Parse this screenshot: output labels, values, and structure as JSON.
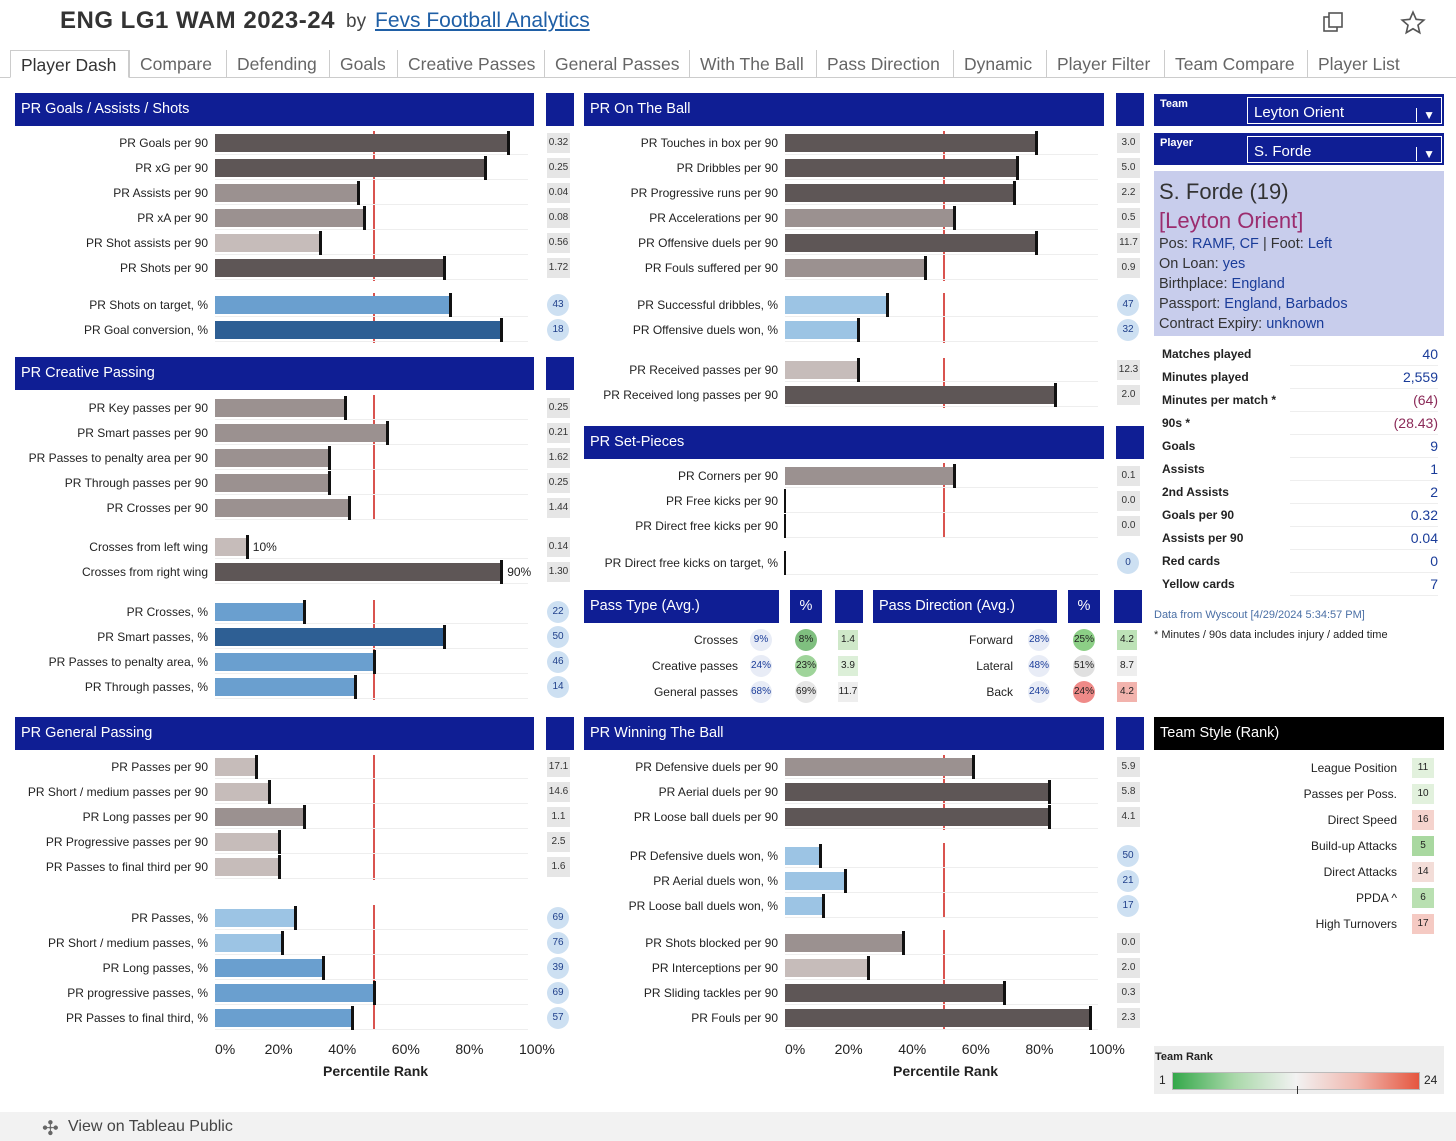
{
  "header": {
    "title": "ENG LG1 WAM 2023-24",
    "by": "by",
    "author": "Fevs Football Analytics",
    "share_icon": "share-icon",
    "favorite_icon": "star-icon"
  },
  "tabs": [
    {
      "label": "Player Dash",
      "active": true
    },
    {
      "label": "Compare"
    },
    {
      "label": "Defending"
    },
    {
      "label": "Goals"
    },
    {
      "label": "Creative Passes"
    },
    {
      "label": "General Passes"
    },
    {
      "label": "With The Ball"
    },
    {
      "label": "Pass Direction"
    },
    {
      "label": "Dynamic"
    },
    {
      "label": "Player Filter"
    },
    {
      "label": "Team Compare"
    },
    {
      "label": "Player List"
    }
  ],
  "colors": {
    "header_blue": "#0f1e94",
    "reference_line": "#d9534f",
    "bar_blue_dark": "#2e5f94",
    "bar_blue_mid": "#6a9fcf",
    "bar_blue_light": "#9cc4e4",
    "bar_grey_dark": "#5e5656",
    "bar_grey_mid": "#9b9190",
    "bar_grey_light": "#c6bcba"
  },
  "chart_data": [
    {
      "type": "bar",
      "title": "PR Goals / Assists / Shots",
      "xlim": [
        0,
        100
      ],
      "reference_line": 50,
      "categories": [
        "PR Goals per 90",
        "PR xG per 90",
        "PR Assists per 90",
        "PR xA per 90",
        "PR Shot assists per 90",
        "PR Shots per 90",
        "PR Shots on target, %",
        "PR Goal conversion, %"
      ],
      "values": [
        92,
        85,
        45,
        47,
        33,
        72,
        74,
        90
      ],
      "raw_values": [
        "0.32",
        "0.25",
        "0.04",
        "0.08",
        "0.56",
        "1.72",
        "43",
        "18"
      ]
    },
    {
      "type": "bar",
      "title": "PR Creative Passing",
      "xlim": [
        0,
        100
      ],
      "reference_line": 50,
      "categories": [
        "PR Key passes per 90",
        "PR Smart passes per 90",
        "PR Passes to penalty area per 90",
        "PR Through passes per 90",
        "PR Crosses per 90",
        "Crosses from left wing",
        "Crosses from right wing",
        "PR Crosses, %",
        "PR Smart passes, %",
        "PR Passes to penalty area, %",
        "PR Through passes, %"
      ],
      "values": [
        41,
        54,
        36,
        36,
        42,
        10,
        90,
        28,
        72,
        50,
        44
      ],
      "value_labels": [
        "",
        "",
        "",
        "",
        "",
        "10%",
        "90%",
        "",
        "",
        "",
        ""
      ],
      "raw_values": [
        "0.25",
        "0.21",
        "1.62",
        "0.25",
        "1.44",
        "0.14",
        "1.30",
        "22",
        "50",
        "46",
        "14"
      ]
    },
    {
      "type": "bar",
      "title": "PR General Passing",
      "xlim": [
        0,
        100
      ],
      "reference_line": 50,
      "xlabel": "Percentile Rank",
      "xticks": [
        "0%",
        "20%",
        "40%",
        "60%",
        "80%",
        "100%"
      ],
      "categories": [
        "PR Passes per 90",
        "PR Short / medium passes per 90",
        "PR Long passes per 90",
        "PR Progressive passes per 90",
        "PR Passes to final third per 90",
        "PR Passes, %",
        "PR Short / medium passes, %",
        "PR Long passes, %",
        "PR progressive passes, %",
        "PR Passes to final third, %"
      ],
      "values": [
        13,
        17,
        28,
        20,
        20,
        25,
        21,
        34,
        50,
        43
      ],
      "raw_values": [
        "17.1",
        "14.6",
        "1.1",
        "2.5",
        "1.6",
        "69",
        "76",
        "39",
        "69",
        "57"
      ]
    },
    {
      "type": "bar",
      "title": "PR On The Ball",
      "xlim": [
        0,
        100
      ],
      "reference_line": 50,
      "categories": [
        "PR Touches in box per 90",
        "PR Dribbles per 90",
        "PR Progressive runs per 90",
        "PR Accelerations per 90",
        "PR Offensive duels per 90",
        "PR Fouls suffered per 90",
        "PR Successful dribbles, %",
        "PR Offensive duels won, %",
        "PR Received passes per 90",
        "PR Received long passes per 90"
      ],
      "values": [
        79,
        73,
        72,
        53,
        79,
        44,
        32,
        23,
        23,
        85
      ],
      "raw_values": [
        "3.0",
        "5.0",
        "2.2",
        "0.5",
        "11.7",
        "0.9",
        "47",
        "32",
        "12.3",
        "2.0"
      ]
    },
    {
      "type": "bar",
      "title": "PR Set-Pieces",
      "xlim": [
        0,
        100
      ],
      "reference_line": 50,
      "categories": [
        "PR Corners per 90",
        "PR Free kicks per 90",
        "PR Direct free kicks per 90",
        "PR Direct free kicks on target, %"
      ],
      "values": [
        53,
        0,
        0,
        0
      ],
      "raw_values": [
        "0.1",
        "0.0",
        "0.0",
        "0"
      ]
    },
    {
      "type": "table",
      "title": "Pass Type (Avg.)",
      "pct_header": "%",
      "rows": [
        {
          "label": "Crosses",
          "pct": "9%",
          "avg_pct": "8%",
          "value": "1.4"
        },
        {
          "label": "Creative passes",
          "pct": "24%",
          "avg_pct": "23%",
          "value": "3.9"
        },
        {
          "label": "General passes",
          "pct": "68%",
          "avg_pct": "69%",
          "value": "11.7"
        }
      ]
    },
    {
      "type": "table",
      "title": "Pass Direction (Avg.)",
      "pct_header": "%",
      "rows": [
        {
          "label": "Forward",
          "pct": "28%",
          "avg_pct": "25%",
          "value": "4.2"
        },
        {
          "label": "Lateral",
          "pct": "48%",
          "avg_pct": "51%",
          "value": "8.7"
        },
        {
          "label": "Back",
          "pct": "24%",
          "avg_pct": "24%",
          "value": "4.2"
        }
      ]
    },
    {
      "type": "bar",
      "title": "PR Winning The Ball",
      "xlim": [
        0,
        100
      ],
      "reference_line": 50,
      "xlabel": "Percentile Rank",
      "xticks": [
        "0%",
        "20%",
        "40%",
        "60%",
        "80%",
        "100%"
      ],
      "categories": [
        "PR Defensive duels per 90",
        "PR Aerial duels per 90",
        "PR Loose ball duels per 90",
        "PR Defensive duels won, %",
        "PR Aerial duels won, %",
        "PR Loose ball duels won, %",
        "PR Shots blocked per 90",
        "PR Interceptions per 90",
        "PR Sliding tackles per 90",
        "PR Fouls per 90"
      ],
      "values": [
        59,
        83,
        83,
        11,
        19,
        12,
        37,
        26,
        69,
        96
      ],
      "raw_values": [
        "5.9",
        "5.8",
        "4.1",
        "50",
        "21",
        "17",
        "0.0",
        "2.0",
        "0.3",
        "2.3"
      ]
    },
    {
      "type": "table",
      "title": "Team Style (Rank)",
      "rows": [
        {
          "label": "League Position",
          "rank": "11"
        },
        {
          "label": "Passes per Poss.",
          "rank": "10"
        },
        {
          "label": "Direct Speed",
          "rank": "16"
        },
        {
          "label": "Build-up Attacks",
          "rank": "5"
        },
        {
          "label": "Direct Attacks",
          "rank": "14"
        },
        {
          "label": "PPDA ^",
          "rank": "6"
        },
        {
          "label": "High Turnovers",
          "rank": "17"
        }
      ],
      "legend": {
        "title": "Team Rank",
        "min": "1",
        "max": "24"
      }
    }
  ],
  "filters": {
    "team_label": "Team",
    "team_value": "Leyton Orient",
    "player_label": "Player",
    "player_value": "S. Forde",
    "dropdown_icon": "chevron-down-icon"
  },
  "player": {
    "name": "S. Forde (19)",
    "team": "[Leyton Orient]",
    "pos_label": "Pos:",
    "pos": "RAMF, CF",
    "sep": "|",
    "foot_label": "Foot:",
    "foot": "Left",
    "loan_label": "On Loan:",
    "loan": "yes",
    "birth_label": "Birthplace:",
    "birth": "England",
    "passport_label": "Passport:",
    "passport": "England, Barbados",
    "contract_label": "Contract Expiry:",
    "contract": "unknown"
  },
  "stats": [
    {
      "label": "Matches played",
      "value": "40"
    },
    {
      "label": "Minutes played",
      "value": "2,559"
    },
    {
      "label": "Minutes per match *",
      "value": "(64)"
    },
    {
      "label": "90s *",
      "value": "(28.43)"
    },
    {
      "label": "Goals",
      "value": "9"
    },
    {
      "label": "Assists",
      "value": "1"
    },
    {
      "label": "2nd Assists",
      "value": "2"
    },
    {
      "label": "Goals per 90",
      "value": "0.32"
    },
    {
      "label": "Assists per 90",
      "value": "0.04"
    },
    {
      "label": "Red cards",
      "value": "0"
    },
    {
      "label": "Yellow cards",
      "value": "7"
    }
  ],
  "notes": {
    "source": "Data from Wyscout [4/29/2024 5:34:57 PM]",
    "minutes_note": "* Minutes / 90s data includes injury / added time"
  },
  "footer": {
    "label": "View on Tableau Public",
    "icon": "tableau-icon"
  }
}
